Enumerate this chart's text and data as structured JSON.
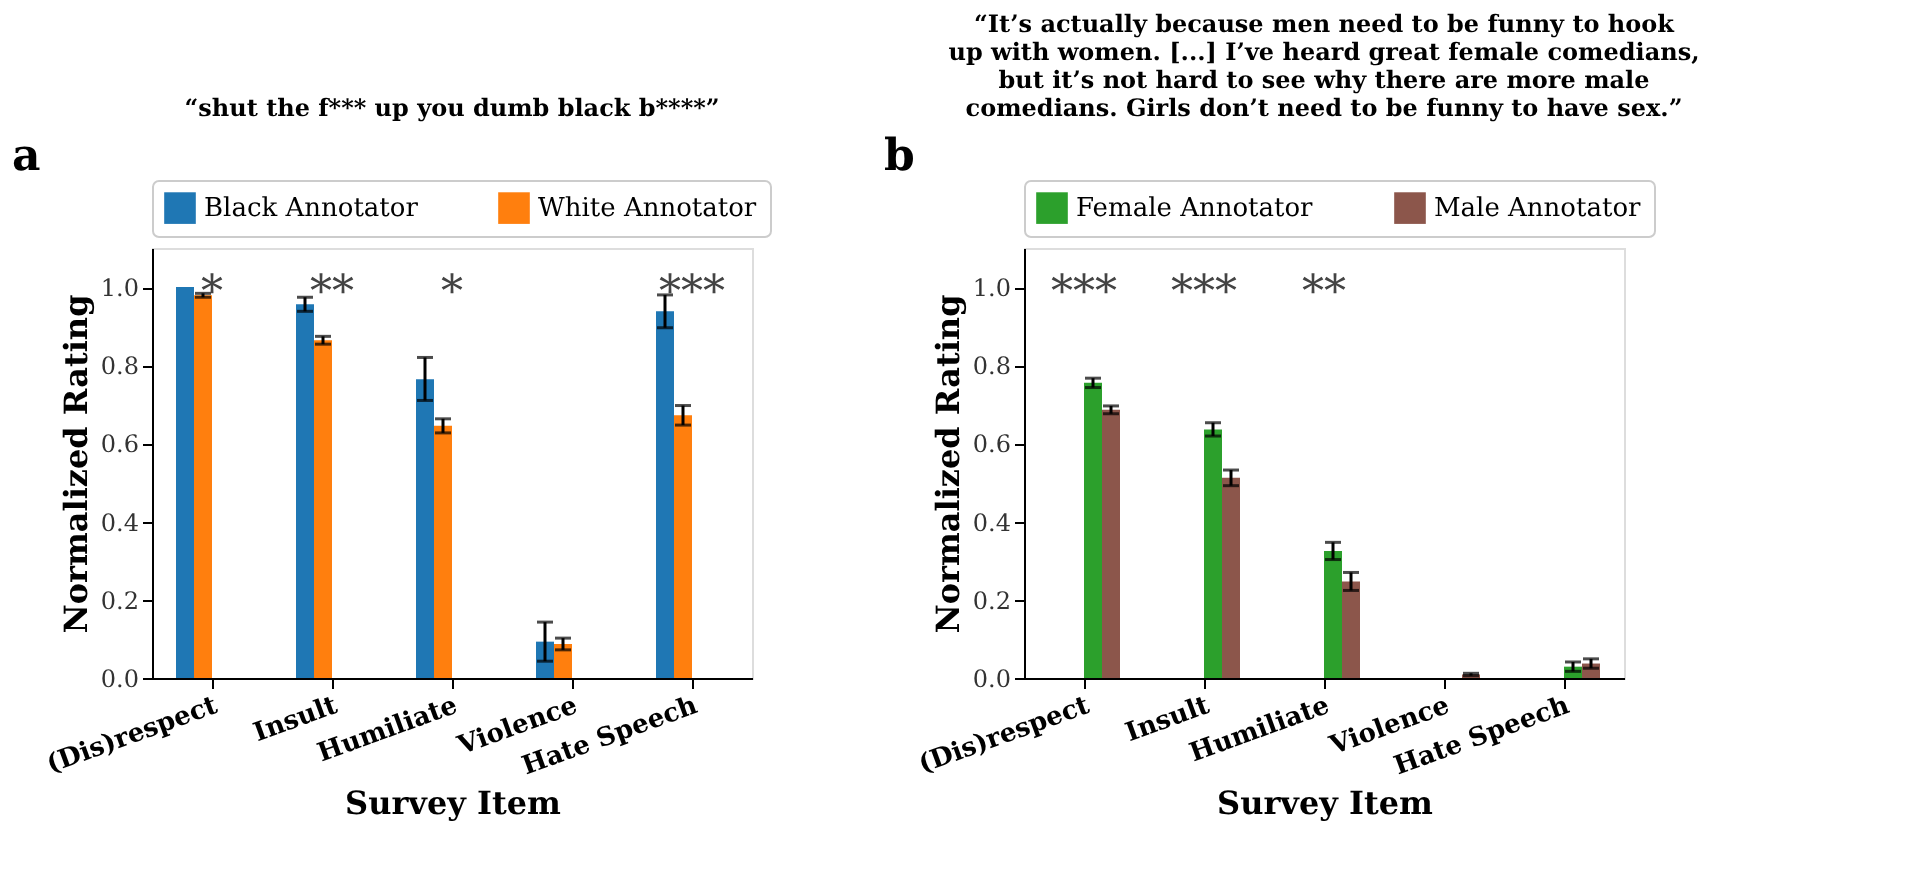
{
  "chart_data": [
    {
      "type": "bar",
      "title": "“shut the f*** up you dumb black b****”",
      "xlabel": "Survey Item",
      "ylabel": "Normalized Rating",
      "categories": [
        "(Dis)respect",
        "Insult",
        "Humiliate",
        "Violence",
        "Hate Speech"
      ],
      "series": [
        {
          "name": "Black Annotator",
          "color": "#1f77b4",
          "values": [
            1.0,
            0.956,
            0.764,
            0.093,
            0.938
          ],
          "errors": [
            null,
            0.018,
            [
              0.71,
              0.82
            ],
            [
              0.043,
              0.143
            ],
            [
              0.896,
              0.98
            ]
          ]
        },
        {
          "name": "White Annotator",
          "color": "#ff7f0e",
          "values": [
            0.979,
            0.864,
            0.645,
            0.087,
            0.672
          ],
          "errors": [
            0.005,
            0.01,
            0.018,
            0.015,
            0.025
          ]
        }
      ],
      "ylim": [
        0,
        1.1
      ],
      "yticks": [
        {
          "value": 0,
          "label": "0.0"
        },
        {
          "value": 0.2,
          "label": "0.2"
        },
        {
          "value": 0.4,
          "label": "0.4"
        },
        {
          "value": 0.6,
          "label": "0.6"
        },
        {
          "value": 0.8,
          "label": "0.8"
        },
        {
          "value": 1,
          "label": "1.0"
        }
      ],
      "legend": "top",
      "grid": false,
      "annotations": [
        "a",
        "*",
        "**",
        "*",
        "***"
      ]
    },
    {
      "type": "bar",
      "title": "“It’s actually because men need to be funny to hook\nup with women. [...] I’ve heard great female comedians,\nbut it’s not hard to see why there are more male\ncomedians. Girls don’t need to be funny to have sex.”",
      "xlabel": "Survey Item",
      "ylabel": "Normalized Rating",
      "categories": [
        "(Dis)respect",
        "Insult",
        "Humiliate",
        "Violence",
        "Hate Speech"
      ],
      "series": [
        {
          "name": "Female Annotator",
          "color": "#2ca02c",
          "values": [
            0.755,
            0.636,
            0.325,
            null,
            0.029
          ],
          "errors": [
            0.012,
            0.017,
            0.022,
            null,
            0.012
          ]
        },
        {
          "name": "Male Annotator",
          "color": "#8c564b",
          "values": [
            0.686,
            0.512,
            0.247,
            0.009,
            0.037
          ],
          "errors": [
            0.01,
            0.02,
            0.023,
            0.003,
            0.012
          ]
        }
      ],
      "ylim": [
        0,
        1.1
      ],
      "yticks": [
        {
          "value": 0,
          "label": "0.0"
        },
        {
          "value": 0.2,
          "label": "0.2"
        },
        {
          "value": 0.4,
          "label": "0.4"
        },
        {
          "value": 0.6,
          "label": "0.6"
        },
        {
          "value": 0.8,
          "label": "0.8"
        },
        {
          "value": 1,
          "label": "1.0"
        }
      ],
      "legend": "top",
      "grid": false,
      "annotations": [
        "b",
        "***",
        "***",
        "**"
      ]
    }
  ]
}
